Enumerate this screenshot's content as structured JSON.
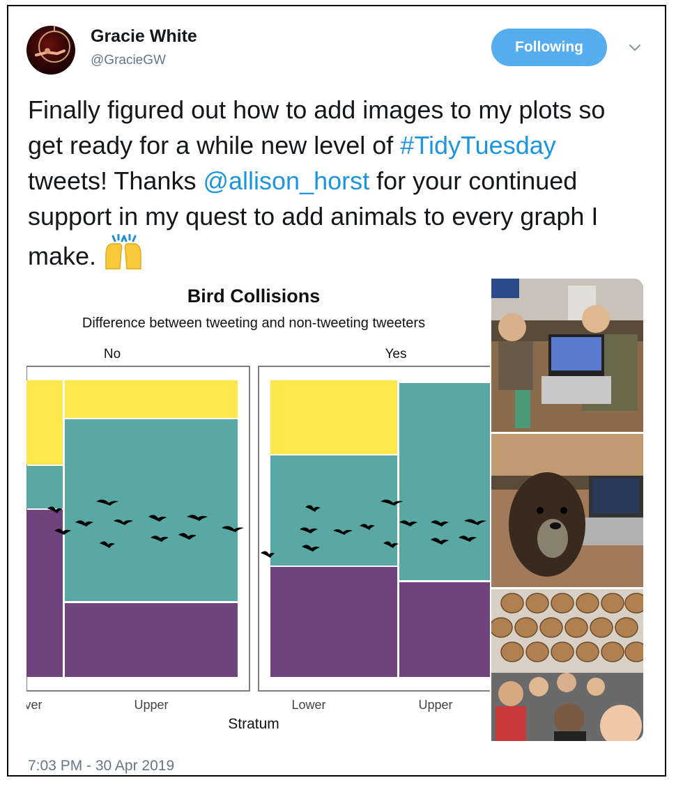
{
  "tweet": {
    "author_name": "Gracie White",
    "author_handle": "@GracieGW",
    "follow_label": "Following",
    "text_part1": "Finally figured out how to add images to my plots so get ready for a while new level of ",
    "hashtag": "#TidyTuesday",
    "text_part2": " tweets! Thanks ",
    "mention": "@allison_horst",
    "text_part3": " for your continued support in my quest to add animals to every graph I make. ",
    "timestamp": "7:03 PM - 30 Apr 2019"
  },
  "colors": {
    "link": "#1b95e0",
    "follow_button": "#55acee",
    "viridis_yellow": "#fde74c",
    "viridis_teal": "#5aa8a4",
    "viridis_purple": "#6f447d"
  },
  "icons": {
    "avatar": "aerialist-avatar",
    "caret": "chevron-down-icon",
    "emoji": "raising-hands-emoji"
  },
  "chart_data": {
    "type": "mosaic",
    "title": "Bird Collisions",
    "subtitle": "Difference between tweeting and non-tweeting tweeters",
    "xlabel": "Stratum",
    "facets": [
      {
        "name": "No",
        "tick_labels": [
          "ver",
          "Upper"
        ]
      },
      {
        "name": "Yes",
        "tick_labels": [
          "Lower",
          "Upper"
        ]
      }
    ],
    "categories": [
      "Lower",
      "Upper"
    ]
  },
  "photos": [
    {
      "subject": "people-with-laptop-photo"
    },
    {
      "subject": "dog-with-laptop-photo"
    },
    {
      "subject": "group-selfie-barrels-photo"
    }
  ]
}
